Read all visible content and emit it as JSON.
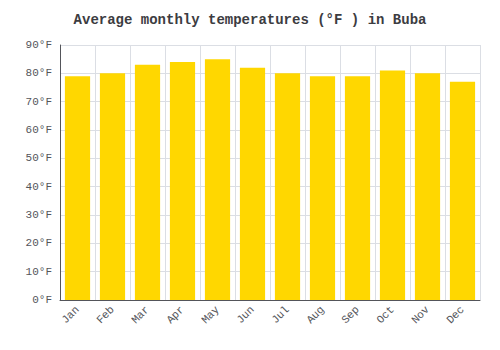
{
  "chart_data": {
    "type": "bar",
    "title": "Average monthly temperatures (°F ) in Buba",
    "categories": [
      "Jan",
      "Feb",
      "Mar",
      "Apr",
      "May",
      "Jun",
      "Jul",
      "Aug",
      "Sep",
      "Oct",
      "Nov",
      "Dec"
    ],
    "values": [
      79,
      80,
      83,
      84,
      85,
      82,
      80,
      79,
      79,
      81,
      80,
      77
    ],
    "color": "#FFD700",
    "ylim": [
      0,
      90
    ],
    "yticks": [
      {
        "value": 0,
        "label": "0°F"
      },
      {
        "value": 10,
        "label": "10°F"
      },
      {
        "value": 20,
        "label": "20°F"
      },
      {
        "value": 30,
        "label": "30°F"
      },
      {
        "value": 40,
        "label": "40°F"
      },
      {
        "value": 50,
        "label": "50°F"
      },
      {
        "value": 60,
        "label": "60°F"
      },
      {
        "value": 70,
        "label": "70°F"
      },
      {
        "value": 80,
        "label": "80°F"
      },
      {
        "value": 90,
        "label": "90°F"
      }
    ],
    "grid": true
  }
}
